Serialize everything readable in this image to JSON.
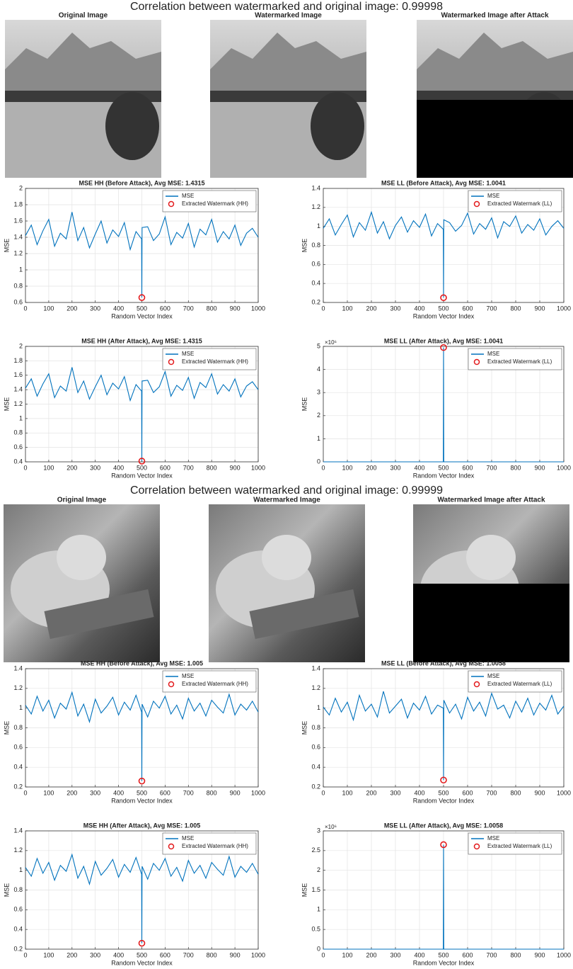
{
  "figures": [
    {
      "title": "Correlation between watermarked and original image: 0.99998",
      "image_titles": [
        "Original Image",
        "Watermarked Image",
        "Watermarked Image after Attack"
      ]
    },
    {
      "title": "Correlation between watermarked and original image: 0.99999",
      "image_titles": [
        "Original Image",
        "Watermarked Image",
        "Watermarked Image after Attack"
      ]
    }
  ],
  "chart_data": [
    {
      "type": "line",
      "title": "MSE HH (Before Attack), Avg MSE: 1.4315",
      "xlabel": "Random Vector Index",
      "ylabel": "MSE",
      "x": [
        0,
        25,
        50,
        75,
        100,
        125,
        150,
        175,
        200,
        225,
        250,
        275,
        300,
        325,
        350,
        375,
        400,
        425,
        450,
        475,
        499,
        500,
        501,
        525,
        550,
        575,
        600,
        625,
        650,
        675,
        700,
        725,
        750,
        775,
        800,
        825,
        850,
        875,
        900,
        925,
        950,
        975,
        1000
      ],
      "series": [
        {
          "name": "MSE",
          "color": "#0072bd",
          "values": [
            1.42,
            1.55,
            1.31,
            1.48,
            1.62,
            1.29,
            1.45,
            1.38,
            1.71,
            1.36,
            1.52,
            1.27,
            1.44,
            1.6,
            1.33,
            1.49,
            1.41,
            1.58,
            1.25,
            1.47,
            1.38,
            0.66,
            1.52,
            1.53,
            1.36,
            1.44,
            1.65,
            1.31,
            1.46,
            1.39,
            1.57,
            1.28,
            1.5,
            1.43,
            1.62,
            1.34,
            1.47,
            1.38,
            1.55,
            1.3,
            1.45,
            1.51,
            1.4
          ]
        },
        {
          "name": "Extracted Watermark (HH)",
          "color": "#e31a1c",
          "marker": "circle",
          "x": [
            500
          ],
          "values": [
            0.66
          ]
        }
      ],
      "xlim": [
        0,
        1000
      ],
      "xticks": [
        0,
        100,
        200,
        300,
        400,
        500,
        600,
        700,
        800,
        900,
        1000
      ],
      "ylim": [
        0.6,
        2
      ],
      "yticks": [
        0.6,
        0.8,
        1,
        1.2,
        1.4,
        1.6,
        1.8,
        2
      ],
      "grid": true,
      "legend": "upper right"
    },
    {
      "type": "line",
      "title": "MSE LL (Before Attack), Avg MSE: 1.0041",
      "xlabel": "Random Vector Index",
      "ylabel": "MSE",
      "x": [
        0,
        25,
        50,
        75,
        100,
        125,
        150,
        175,
        200,
        225,
        250,
        275,
        300,
        325,
        350,
        375,
        400,
        425,
        450,
        475,
        499,
        500,
        501,
        525,
        550,
        575,
        600,
        625,
        650,
        675,
        700,
        725,
        750,
        775,
        800,
        825,
        850,
        875,
        900,
        925,
        950,
        975,
        1000
      ],
      "series": [
        {
          "name": "MSE",
          "color": "#0072bd",
          "values": [
            0.98,
            1.08,
            0.91,
            1.02,
            1.12,
            0.89,
            1.04,
            0.96,
            1.15,
            0.93,
            1.05,
            0.87,
            1.01,
            1.1,
            0.94,
            1.06,
            0.99,
            1.13,
            0.9,
            1.03,
            0.97,
            0.25,
            1.07,
            1.04,
            0.95,
            1.01,
            1.14,
            0.92,
            1.03,
            0.97,
            1.09,
            0.88,
            1.05,
            1,
            1.11,
            0.93,
            1.02,
            0.96,
            1.08,
            0.91,
            1,
            1.06,
            0.98
          ]
        },
        {
          "name": "Extracted Watermark (LL)",
          "color": "#e31a1c",
          "marker": "circle",
          "x": [
            500
          ],
          "values": [
            0.25
          ]
        }
      ],
      "xlim": [
        0,
        1000
      ],
      "xticks": [
        0,
        100,
        200,
        300,
        400,
        500,
        600,
        700,
        800,
        900,
        1000
      ],
      "ylim": [
        0.2,
        1.4
      ],
      "yticks": [
        0.2,
        0.4,
        0.6,
        0.8,
        1,
        1.2,
        1.4
      ],
      "grid": true,
      "legend": "upper right"
    },
    {
      "type": "line",
      "title": "MSE HH (After Attack), Avg MSE: 1.4315",
      "xlabel": "Random Vector Index",
      "ylabel": "MSE",
      "x": [
        0,
        25,
        50,
        75,
        100,
        125,
        150,
        175,
        200,
        225,
        250,
        275,
        300,
        325,
        350,
        375,
        400,
        425,
        450,
        475,
        499,
        500,
        501,
        525,
        550,
        575,
        600,
        625,
        650,
        675,
        700,
        725,
        750,
        775,
        800,
        825,
        850,
        875,
        900,
        925,
        950,
        975,
        1000
      ],
      "series": [
        {
          "name": "MSE",
          "color": "#0072bd",
          "values": [
            1.42,
            1.55,
            1.31,
            1.48,
            1.62,
            1.29,
            1.45,
            1.38,
            1.71,
            1.36,
            1.52,
            1.27,
            1.44,
            1.6,
            1.33,
            1.49,
            1.41,
            1.58,
            1.25,
            1.47,
            1.38,
            0.41,
            1.52,
            1.53,
            1.36,
            1.44,
            1.65,
            1.31,
            1.46,
            1.39,
            1.57,
            1.28,
            1.5,
            1.43,
            1.62,
            1.34,
            1.47,
            1.38,
            1.55,
            1.3,
            1.45,
            1.51,
            1.4
          ]
        },
        {
          "name": "Extracted Watermark (HH)",
          "color": "#e31a1c",
          "marker": "circle",
          "x": [
            500
          ],
          "values": [
            0.41
          ]
        }
      ],
      "xlim": [
        0,
        1000
      ],
      "xticks": [
        0,
        100,
        200,
        300,
        400,
        500,
        600,
        700,
        800,
        900,
        1000
      ],
      "ylim": [
        0.4,
        2
      ],
      "yticks": [
        0.4,
        0.6,
        0.8,
        1,
        1.2,
        1.4,
        1.6,
        1.8,
        2
      ],
      "grid": true,
      "legend": "upper right"
    },
    {
      "type": "line",
      "title": "MSE LL (After Attack), Avg MSE: 1.0041",
      "xlabel": "Random Vector Index",
      "ylabel": "MSE",
      "y_multiplier": "×10⁶",
      "x": [
        0,
        499,
        500,
        501,
        1000
      ],
      "series": [
        {
          "name": "MSE",
          "color": "#0072bd",
          "values": [
            0,
            0,
            4950000,
            0,
            0
          ]
        },
        {
          "name": "Extracted Watermark (LL)",
          "color": "#e31a1c",
          "marker": "circle",
          "x": [
            500
          ],
          "values": [
            4950000
          ]
        }
      ],
      "xlim": [
        0,
        1000
      ],
      "xticks": [
        0,
        100,
        200,
        300,
        400,
        500,
        600,
        700,
        800,
        900,
        1000
      ],
      "ylim": [
        0,
        5000000
      ],
      "yticks": [
        0,
        {
          "value": 1000000,
          "label": "1"
        },
        {
          "value": 2000000,
          "label": "2"
        },
        {
          "value": 3000000,
          "label": "3"
        },
        {
          "value": 4000000,
          "label": "4"
        },
        {
          "value": 5000000,
          "label": "5"
        }
      ],
      "grid": true,
      "legend": "upper right"
    },
    {
      "type": "line",
      "title": "MSE HH (Before Attack), Avg MSE: 1.005",
      "xlabel": "Random Vector Index",
      "ylabel": "MSE",
      "x": [
        0,
        25,
        50,
        75,
        100,
        125,
        150,
        175,
        200,
        225,
        250,
        275,
        300,
        325,
        350,
        375,
        400,
        425,
        450,
        475,
        499,
        500,
        501,
        525,
        550,
        575,
        600,
        625,
        650,
        675,
        700,
        725,
        750,
        775,
        800,
        825,
        850,
        875,
        900,
        925,
        950,
        975,
        1000
      ],
      "series": [
        {
          "name": "MSE",
          "color": "#0072bd",
          "values": [
            1.03,
            0.94,
            1.12,
            0.97,
            1.08,
            0.9,
            1.05,
            0.99,
            1.16,
            0.92,
            1.04,
            0.86,
            1.09,
            0.95,
            1.02,
            1.11,
            0.93,
            1.06,
            0.98,
            1.13,
            0.96,
            0.26,
            1.04,
            0.91,
            1.07,
            1,
            1.12,
            0.94,
            1.03,
            0.89,
            1.1,
            0.97,
            1.05,
            0.92,
            1.08,
            1.01,
            0.95,
            1.14,
            0.93,
            1.04,
            0.98,
            1.07,
            0.96
          ]
        },
        {
          "name": "Extracted Watermark (HH)",
          "color": "#e31a1c",
          "marker": "circle",
          "x": [
            500
          ],
          "values": [
            0.26
          ]
        }
      ],
      "xlim": [
        0,
        1000
      ],
      "xticks": [
        0,
        100,
        200,
        300,
        400,
        500,
        600,
        700,
        800,
        900,
        1000
      ],
      "ylim": [
        0.2,
        1.4
      ],
      "yticks": [
        0.2,
        0.4,
        0.6,
        0.8,
        1,
        1.2,
        1.4
      ],
      "grid": true,
      "legend": "upper right"
    },
    {
      "type": "line",
      "title": "MSE LL (Before Attack), Avg MSE: 1.0058",
      "xlabel": "Random Vector Index",
      "ylabel": "MSE",
      "x": [
        0,
        25,
        50,
        75,
        100,
        125,
        150,
        175,
        200,
        225,
        250,
        275,
        300,
        325,
        350,
        375,
        400,
        425,
        450,
        475,
        499,
        500,
        501,
        525,
        550,
        575,
        600,
        625,
        650,
        675,
        700,
        725,
        750,
        775,
        800,
        825,
        850,
        875,
        900,
        925,
        950,
        975,
        1000
      ],
      "series": [
        {
          "name": "MSE",
          "color": "#0072bd",
          "values": [
            1.01,
            0.93,
            1.1,
            0.96,
            1.06,
            0.88,
            1.13,
            0.97,
            1.04,
            0.91,
            1.17,
            0.95,
            1.02,
            1.09,
            0.9,
            1.05,
            0.98,
            1.12,
            0.94,
            1.03,
            1,
            0.27,
            1.08,
            0.95,
            1.04,
            0.89,
            1.11,
            0.97,
            1.06,
            0.92,
            1.15,
            0.99,
            1.03,
            0.9,
            1.07,
            0.96,
            1.1,
            0.93,
            1.05,
            0.98,
            1.13,
            0.94,
            1.02
          ]
        },
        {
          "name": "Extracted Watermark (LL)",
          "color": "#e31a1c",
          "marker": "circle",
          "x": [
            500
          ],
          "values": [
            0.27
          ]
        }
      ],
      "xlim": [
        0,
        1000
      ],
      "xticks": [
        0,
        100,
        200,
        300,
        400,
        500,
        600,
        700,
        800,
        900,
        1000
      ],
      "ylim": [
        0.2,
        1.4
      ],
      "yticks": [
        0.2,
        0.4,
        0.6,
        0.8,
        1,
        1.2,
        1.4
      ],
      "grid": true,
      "legend": "upper right"
    },
    {
      "type": "line",
      "title": "MSE HH (After Attack), Avg MSE: 1.005",
      "xlabel": "Random Vector Index",
      "ylabel": "MSE",
      "x": [
        0,
        25,
        50,
        75,
        100,
        125,
        150,
        175,
        200,
        225,
        250,
        275,
        300,
        325,
        350,
        375,
        400,
        425,
        450,
        475,
        499,
        500,
        501,
        525,
        550,
        575,
        600,
        625,
        650,
        675,
        700,
        725,
        750,
        775,
        800,
        825,
        850,
        875,
        900,
        925,
        950,
        975,
        1000
      ],
      "series": [
        {
          "name": "MSE",
          "color": "#0072bd",
          "values": [
            1.03,
            0.94,
            1.12,
            0.97,
            1.08,
            0.9,
            1.05,
            0.99,
            1.16,
            0.92,
            1.04,
            0.86,
            1.09,
            0.95,
            1.02,
            1.11,
            0.93,
            1.06,
            0.98,
            1.13,
            0.96,
            0.26,
            1.04,
            0.91,
            1.07,
            1,
            1.12,
            0.94,
            1.03,
            0.89,
            1.1,
            0.97,
            1.05,
            0.92,
            1.08,
            1.01,
            0.95,
            1.14,
            0.93,
            1.04,
            0.98,
            1.07,
            0.96
          ]
        },
        {
          "name": "Extracted Watermark (HH)",
          "color": "#e31a1c",
          "marker": "circle",
          "x": [
            500
          ],
          "values": [
            0.26
          ]
        }
      ],
      "xlim": [
        0,
        1000
      ],
      "xticks": [
        0,
        100,
        200,
        300,
        400,
        500,
        600,
        700,
        800,
        900,
        1000
      ],
      "ylim": [
        0.2,
        1.4
      ],
      "yticks": [
        0.2,
        0.4,
        0.6,
        0.8,
        1,
        1.2,
        1.4
      ],
      "grid": true,
      "legend": "upper right"
    },
    {
      "type": "line",
      "title": "MSE LL (After Attack), Avg MSE: 1.0058",
      "xlabel": "Random Vector Index",
      "ylabel": "MSE",
      "y_multiplier": "×10⁶",
      "x": [
        0,
        499,
        500,
        501,
        1000
      ],
      "series": [
        {
          "name": "MSE",
          "color": "#0072bd",
          "values": [
            0,
            0,
            2650000,
            0,
            0
          ]
        },
        {
          "name": "Extracted Watermark (LL)",
          "color": "#e31a1c",
          "marker": "circle",
          "x": [
            500
          ],
          "values": [
            2650000
          ]
        }
      ],
      "xlim": [
        0,
        1000
      ],
      "xticks": [
        0,
        100,
        200,
        300,
        400,
        500,
        600,
        700,
        800,
        900,
        1000
      ],
      "ylim": [
        0,
        3000000
      ],
      "yticks": [
        0,
        {
          "value": 500000,
          "label": "0.5"
        },
        {
          "value": 1000000,
          "label": "1"
        },
        {
          "value": 1500000,
          "label": "1.5"
        },
        {
          "value": 2000000,
          "label": "2"
        },
        {
          "value": 2500000,
          "label": "2.5"
        },
        {
          "value": 3000000,
          "label": "3"
        }
      ],
      "grid": true,
      "legend": "upper right"
    }
  ]
}
